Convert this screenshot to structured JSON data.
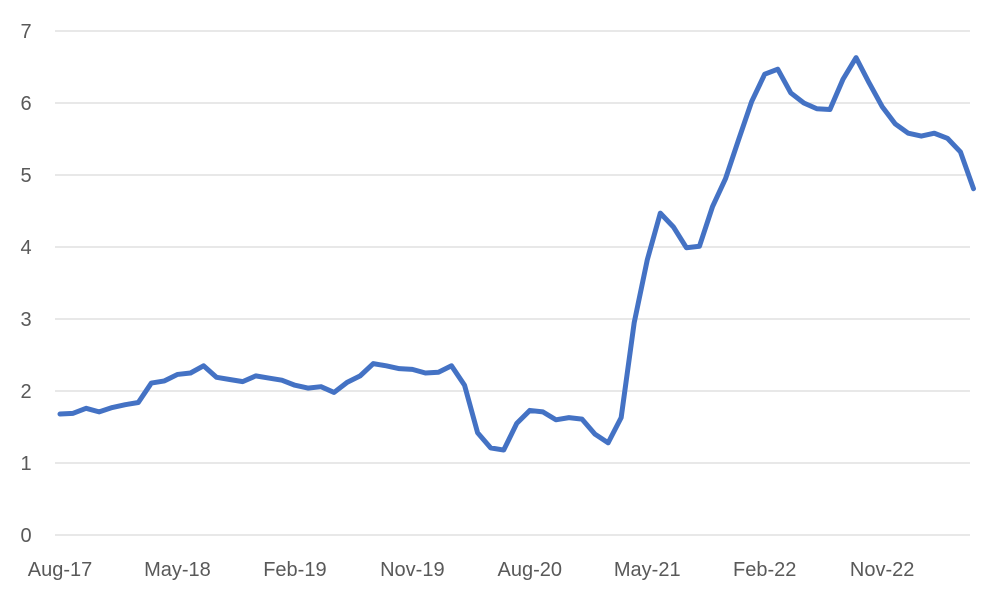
{
  "chart_data": {
    "type": "line",
    "title": "",
    "xlabel": "",
    "ylabel": "",
    "ylim": [
      0,
      7
    ],
    "yticks": [
      0,
      1,
      2,
      3,
      4,
      5,
      6,
      7
    ],
    "grid": true,
    "legend": "none",
    "x_tick_labels": [
      "Aug-17",
      "May-18",
      "Feb-19",
      "Nov-19",
      "Aug-20",
      "May-21",
      "Feb-22",
      "Nov-22"
    ],
    "x": [
      "Aug-17",
      "Sep-17",
      "Oct-17",
      "Nov-17",
      "Dec-17",
      "Jan-18",
      "Feb-18",
      "Mar-18",
      "Apr-18",
      "May-18",
      "Jun-18",
      "Jul-18",
      "Aug-18",
      "Sep-18",
      "Oct-18",
      "Nov-18",
      "Dec-18",
      "Jan-19",
      "Feb-19",
      "Mar-19",
      "Apr-19",
      "May-19",
      "Jun-19",
      "Jul-19",
      "Aug-19",
      "Sep-19",
      "Oct-19",
      "Nov-19",
      "Dec-19",
      "Jan-20",
      "Feb-20",
      "Mar-20",
      "Apr-20",
      "May-20",
      "Jun-20",
      "Jul-20",
      "Aug-20",
      "Sep-20",
      "Oct-20",
      "Nov-20",
      "Dec-20",
      "Jan-21",
      "Feb-21",
      "Mar-21",
      "Apr-21",
      "May-21",
      "Jun-21",
      "Jul-21",
      "Aug-21",
      "Sep-21",
      "Oct-21",
      "Nov-21",
      "Dec-21",
      "Jan-22",
      "Feb-22",
      "Mar-22",
      "Apr-22",
      "May-22",
      "Jun-22",
      "Jul-22",
      "Aug-22",
      "Sep-22",
      "Oct-22",
      "Nov-22",
      "Dec-22",
      "Jan-23",
      "Feb-23",
      "Mar-23",
      "Apr-23",
      "May-23",
      "Jun-23"
    ],
    "series": [
      {
        "color": "#4472c4",
        "values": [
          1.68,
          1.69,
          1.76,
          1.71,
          1.77,
          1.81,
          1.84,
          2.11,
          2.14,
          2.23,
          2.25,
          2.35,
          2.19,
          2.16,
          2.13,
          2.21,
          2.18,
          2.15,
          2.08,
          2.04,
          2.06,
          1.98,
          2.12,
          2.21,
          2.38,
          2.35,
          2.31,
          2.3,
          2.25,
          2.26,
          2.35,
          2.08,
          1.42,
          1.21,
          1.18,
          1.55,
          1.73,
          1.71,
          1.6,
          1.63,
          1.61,
          1.4,
          1.28,
          1.63,
          2.95,
          3.82,
          4.47,
          4.28,
          3.99,
          4.01,
          4.56,
          4.95,
          5.49,
          6.02,
          6.4,
          6.47,
          6.14,
          6.0,
          5.92,
          5.91,
          6.33,
          6.63,
          6.28,
          5.95,
          5.71,
          5.58,
          5.54,
          5.58,
          5.51,
          5.32,
          4.81
        ]
      }
    ]
  }
}
